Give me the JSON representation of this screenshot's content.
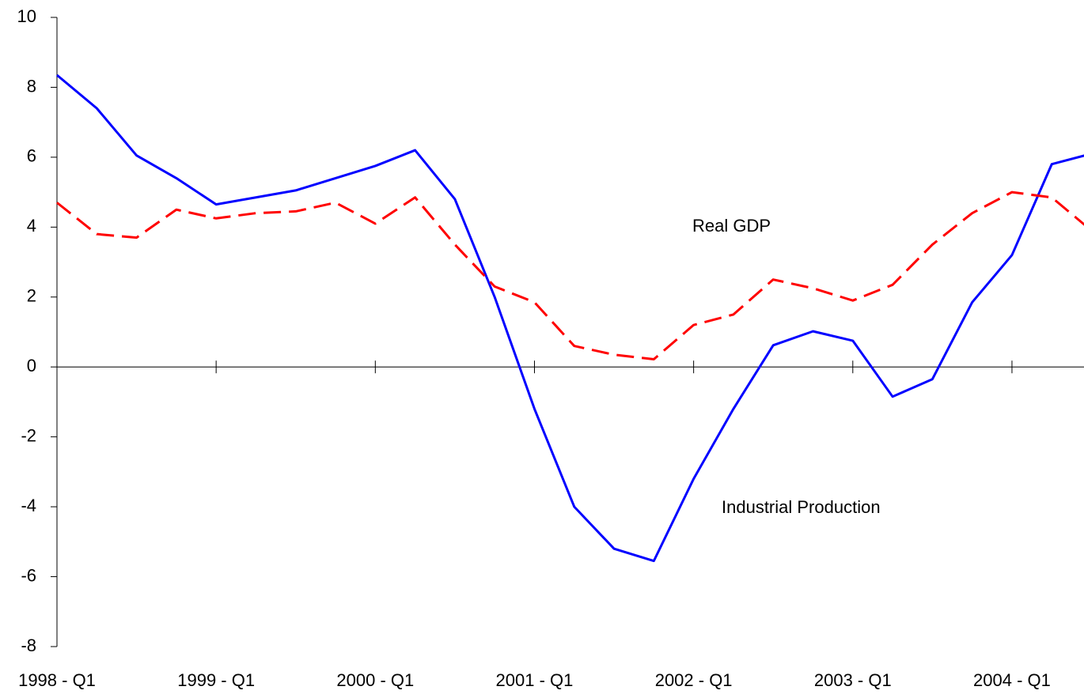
{
  "chart_data": {
    "type": "line",
    "categories": [
      "1998 - Q1",
      null,
      null,
      null,
      "1999 - Q1",
      null,
      null,
      null,
      "2000 - Q1",
      null,
      null,
      null,
      "2001 - Q1",
      null,
      null,
      null,
      "2002 - Q1",
      null,
      null,
      null,
      "2003 - Q1",
      null,
      null,
      null,
      "2004 - Q1",
      null,
      null
    ],
    "series": [
      {
        "name": "Industrial Production",
        "color": "#0000ff",
        "style": "solid",
        "values": [
          8.35,
          7.4,
          6.05,
          5.4,
          4.65,
          4.85,
          5.05,
          5.4,
          5.75,
          6.2,
          4.8,
          2.0,
          -1.2,
          -4.0,
          -5.2,
          -5.55,
          -3.2,
          -1.2,
          0.62,
          1.02,
          0.75,
          -0.85,
          -0.35,
          1.85,
          3.2,
          5.8,
          6.1
        ]
      },
      {
        "name": "Real GDP",
        "color": "#ff0000",
        "style": "dashed",
        "values": [
          4.7,
          3.8,
          3.7,
          4.5,
          4.25,
          4.4,
          4.45,
          4.7,
          4.1,
          4.85,
          3.5,
          2.3,
          1.85,
          0.6,
          0.35,
          0.22,
          1.2,
          1.5,
          2.5,
          2.25,
          1.9,
          2.35,
          3.5,
          4.4,
          5.0,
          4.85,
          3.9
        ]
      }
    ],
    "annotations": [
      "Real GDP",
      "Industrial Production"
    ],
    "ylim": [
      -8,
      10
    ],
    "yticks": [
      -8,
      -6,
      -4,
      -2,
      0,
      2,
      4,
      6,
      8,
      10
    ],
    "grid": false
  }
}
